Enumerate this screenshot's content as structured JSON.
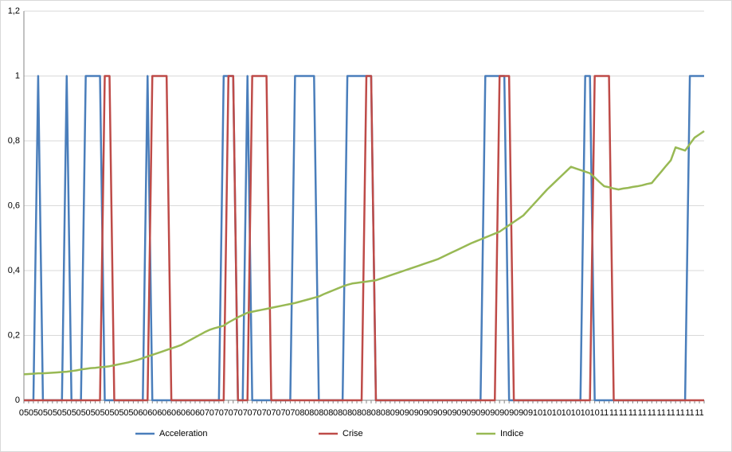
{
  "chart_data": {
    "type": "line",
    "categories": [
      "05",
      null,
      "05",
      null,
      "05",
      null,
      "05",
      null,
      "05",
      null,
      "05",
      null,
      "05",
      null,
      "05",
      null,
      "05",
      null,
      "05",
      null,
      "05",
      null,
      "05",
      null,
      "06",
      null,
      "06",
      null,
      "06",
      null,
      "06",
      null,
      "06",
      null,
      "06",
      null,
      "06",
      null,
      "07",
      null,
      "07",
      null,
      "07",
      null,
      "07",
      null,
      "07",
      null,
      "07",
      null,
      "07",
      null,
      "07",
      null,
      "07",
      null,
      "07",
      null,
      "08",
      null,
      "08",
      null,
      "08",
      null,
      "08",
      null,
      "08",
      null,
      "08",
      null,
      "08",
      null,
      "08",
      null,
      "08",
      null,
      "08",
      null,
      "09",
      null,
      "09",
      null,
      "09",
      null,
      "09",
      null,
      "09",
      null,
      "09",
      null,
      "09",
      null,
      "09",
      null,
      "09",
      null,
      "09",
      null,
      "09",
      null,
      "09",
      null,
      "09",
      null,
      "09",
      null,
      "09",
      null,
      "10",
      null,
      "10",
      null,
      "10",
      null,
      "10",
      null,
      "10",
      null,
      "10",
      null,
      "10",
      null,
      "11",
      null,
      "11",
      null,
      "11",
      null,
      "11",
      null,
      "11",
      null,
      "11",
      null,
      "11",
      null,
      "11",
      null,
      "11",
      null,
      "11",
      null,
      "11",
      null
    ],
    "series": [
      {
        "name": "Acceleration",
        "color": "#4a7ebb",
        "values": [
          0,
          0,
          0,
          1,
          0,
          0,
          0,
          0,
          0,
          1,
          0,
          0,
          0,
          1,
          1,
          1,
          1,
          0,
          0,
          0,
          0,
          0,
          0,
          0,
          0,
          0,
          1,
          0,
          0,
          0,
          0,
          0,
          0,
          0,
          0,
          0,
          0,
          0,
          0,
          0,
          0,
          0,
          1,
          1,
          1,
          0,
          0,
          1,
          0,
          0,
          0,
          0,
          0,
          0,
          0,
          0,
          0,
          1,
          1,
          1,
          1,
          1,
          0,
          0,
          0,
          0,
          0,
          0,
          1,
          1,
          1,
          1,
          1,
          1,
          0,
          0,
          0,
          0,
          0,
          0,
          0,
          0,
          0,
          0,
          0,
          0,
          0,
          0,
          0,
          0,
          0,
          0,
          0,
          0,
          0,
          0,
          0,
          1,
          1,
          1,
          1,
          1,
          0,
          0,
          0,
          0,
          0,
          0,
          0,
          0,
          0,
          0,
          0,
          0,
          0,
          0,
          0,
          0,
          1,
          1,
          0,
          0,
          0,
          0,
          0,
          0,
          0,
          0,
          0,
          0,
          0,
          0,
          0,
          0,
          0,
          0,
          0,
          0,
          0,
          0,
          1,
          1,
          1,
          1
        ]
      },
      {
        "name": "Crise",
        "color": "#be4b48",
        "values": [
          0,
          0,
          0,
          0,
          0,
          0,
          0,
          0,
          0,
          0,
          0,
          0,
          0,
          0,
          0,
          0,
          0,
          1,
          1,
          0,
          0,
          0,
          0,
          0,
          0,
          0,
          0,
          1,
          1,
          1,
          1,
          0,
          0,
          0,
          0,
          0,
          0,
          0,
          0,
          0,
          0,
          0,
          0,
          1,
          1,
          0,
          0,
          0,
          1,
          1,
          1,
          1,
          0,
          0,
          0,
          0,
          0,
          0,
          0,
          0,
          0,
          0,
          0,
          0,
          0,
          0,
          0,
          0,
          0,
          0,
          0,
          0,
          1,
          1,
          0,
          0,
          0,
          0,
          0,
          0,
          0,
          0,
          0,
          0,
          0,
          0,
          0,
          0,
          0,
          0,
          0,
          0,
          0,
          0,
          0,
          0,
          0,
          0,
          0,
          0,
          1,
          1,
          1,
          0,
          0,
          0,
          0,
          0,
          0,
          0,
          0,
          0,
          0,
          0,
          0,
          0,
          0,
          0,
          0,
          0,
          1,
          1,
          1,
          1,
          0,
          0,
          0,
          0,
          0,
          0,
          0,
          0,
          0,
          0,
          0,
          0,
          0,
          0,
          0,
          0,
          0,
          0,
          0,
          0
        ]
      },
      {
        "name": "Indice",
        "color": "#98b954",
        "values": [
          0.08,
          0.081,
          0.082,
          0.083,
          0.083,
          0.084,
          0.085,
          0.086,
          0.087,
          0.088,
          0.09,
          0.092,
          0.095,
          0.097,
          0.099,
          0.1,
          0.102,
          0.103,
          0.105,
          0.108,
          0.111,
          0.114,
          0.117,
          0.121,
          0.125,
          0.13,
          0.135,
          0.14,
          0.145,
          0.15,
          0.155,
          0.16,
          0.165,
          0.17,
          0.178,
          0.186,
          0.194,
          0.202,
          0.21,
          0.217,
          0.222,
          0.226,
          0.23,
          0.24,
          0.248,
          0.256,
          0.263,
          0.27,
          0.273,
          0.276,
          0.279,
          0.282,
          0.285,
          0.288,
          0.291,
          0.294,
          0.297,
          0.3,
          0.304,
          0.308,
          0.312,
          0.316,
          0.32,
          0.327,
          0.333,
          0.339,
          0.345,
          0.351,
          0.356,
          0.36,
          0.362,
          0.364,
          0.366,
          0.368,
          0.37,
          0.375,
          0.38,
          0.385,
          0.39,
          0.395,
          0.4,
          0.405,
          0.41,
          0.415,
          0.42,
          0.425,
          0.43,
          0.435,
          0.442,
          0.449,
          0.456,
          0.463,
          0.47,
          0.477,
          0.484,
          0.49,
          0.496,
          0.502,
          0.508,
          0.514,
          0.52,
          0.53,
          0.54,
          0.55,
          0.56,
          0.57,
          0.586,
          0.602,
          0.618,
          0.634,
          0.65,
          0.664,
          0.678,
          0.692,
          0.706,
          0.72,
          0.715,
          0.71,
          0.705,
          0.7,
          0.687,
          0.673,
          0.66,
          0.657,
          0.653,
          0.65,
          0.653,
          0.655,
          0.658,
          0.66,
          0.663,
          0.667,
          0.67,
          0.688,
          0.705,
          0.723,
          0.74,
          0.78,
          0.775,
          0.77,
          0.79,
          0.81,
          0.82,
          0.83
        ]
      }
    ],
    "ylim": [
      0,
      1.2
    ],
    "yticks": [
      0,
      {
        "value": 0.2,
        "label": "0,2"
      },
      {
        "value": 0.4,
        "label": "0,4"
      },
      {
        "value": 0.6,
        "label": "0,6"
      },
      {
        "value": 0.8,
        "label": "0,8"
      },
      1,
      {
        "value": 1.2,
        "label": "1,2"
      }
    ],
    "grid": true,
    "legend": "bottom"
  }
}
